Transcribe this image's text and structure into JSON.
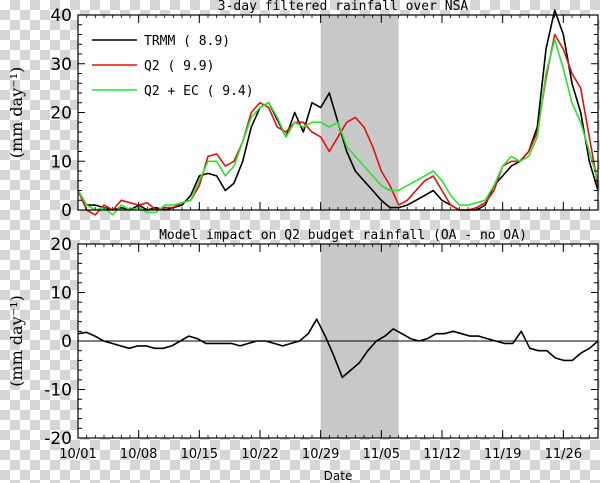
{
  "chart_data": [
    {
      "type": "line",
      "title": "3-day filtered rainfall over NSA",
      "ylabel": "(mm day⁻¹)",
      "ylim": [
        0,
        40
      ],
      "yticks": [
        0,
        10,
        20,
        30,
        40
      ],
      "x_start": "10/01",
      "x_end": "11/30",
      "xticks": [
        "10/01",
        "10/08",
        "10/15",
        "10/22",
        "10/29",
        "11/05",
        "11/12",
        "11/19",
        "11/26"
      ],
      "shaded_period": [
        "10/29",
        "11/07"
      ],
      "legend_position": "top-left",
      "series": [
        {
          "label": "TRMM ( 8.9)",
          "color": "#000000",
          "values": [
            4,
            1,
            1,
            0.5,
            0,
            0.5,
            0,
            1,
            0,
            0.5,
            0,
            0.5,
            1,
            3,
            7,
            7.5,
            7,
            4,
            5.5,
            10,
            17,
            21,
            22,
            18.5,
            15,
            20,
            16,
            22,
            21,
            24,
            18,
            12,
            8,
            6,
            4,
            2,
            0.5,
            0.5,
            1,
            2,
            3,
            4,
            2,
            1,
            0,
            0,
            0,
            1,
            5,
            7,
            9,
            10,
            12,
            17,
            33,
            41,
            36,
            26,
            20,
            10,
            4
          ]
        },
        {
          "label": "Q2 ( 9.9)",
          "color": "#e01010",
          "values": [
            4,
            0,
            -1,
            1,
            0,
            2,
            1.5,
            1,
            1.5,
            0,
            0.5,
            0.5,
            1.5,
            2,
            5,
            11,
            11.5,
            9,
            10,
            14,
            20,
            22,
            21,
            17,
            16,
            18,
            18,
            16,
            15,
            12,
            15,
            18,
            19,
            17,
            13,
            8,
            5,
            1,
            2,
            4,
            6,
            7,
            4,
            1,
            0,
            0,
            0.5,
            1.5,
            4,
            9,
            10,
            10,
            12,
            16,
            27,
            36,
            33,
            28,
            25,
            15,
            5
          ]
        },
        {
          "label": "Q2 + EC ( 9.4)",
          "color": "#2ee02e",
          "values": [
            4,
            1,
            0,
            0.5,
            -1,
            1,
            0,
            0.5,
            -0.5,
            -0.5,
            1,
            1,
            1.5,
            2,
            6,
            10,
            10,
            7,
            9,
            14,
            19,
            21,
            22,
            19,
            15,
            18,
            17,
            18,
            18,
            17,
            18,
            13,
            11,
            9,
            7,
            5,
            4,
            4,
            5,
            6,
            7,
            8,
            6,
            3,
            1,
            1,
            1.5,
            2,
            5,
            9,
            11,
            10,
            11,
            15,
            28,
            35,
            29,
            22,
            18,
            12,
            6
          ]
        }
      ]
    },
    {
      "type": "line",
      "title": "Model impact on Q2 budget rainfall (OA - no OA)",
      "ylabel": "(mm day⁻¹)",
      "xlabel": "Date",
      "ylim": [
        -20,
        20
      ],
      "yticks": [
        -20,
        -10,
        0,
        10,
        20
      ],
      "x_start": "10/01",
      "x_end": "11/30",
      "xticks": [
        "10/01",
        "10/08",
        "10/15",
        "10/22",
        "10/29",
        "11/05",
        "11/12",
        "11/19",
        "11/26"
      ],
      "shaded_period": [
        "10/29",
        "11/07"
      ],
      "zero_line": true,
      "series": [
        {
          "color": "#000000",
          "values": [
            1.5,
            1.8,
            1,
            0,
            -0.5,
            -1,
            -1.5,
            -1,
            -1,
            -1.5,
            -1.5,
            -1,
            0,
            1,
            0.5,
            -0.5,
            -0.5,
            -0.5,
            -0.5,
            -1,
            -0.5,
            0,
            0,
            -0.5,
            -1,
            -0.5,
            0,
            1.5,
            4.5,
            1,
            -3,
            -7.5,
            -6,
            -4.5,
            -2,
            0,
            1,
            2.5,
            1.5,
            0.5,
            0,
            0.5,
            1.5,
            1.5,
            2,
            1.5,
            1,
            1,
            0.5,
            0,
            -0.5,
            -0.5,
            2,
            -1.5,
            -2,
            -2,
            -3.5,
            -4,
            -4,
            -2.5,
            -1.5,
            0
          ]
        }
      ]
    }
  ]
}
